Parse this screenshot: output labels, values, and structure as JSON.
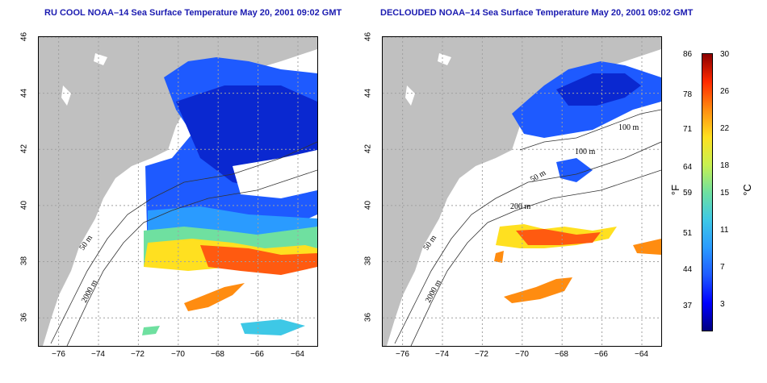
{
  "panels": [
    {
      "title": "RU COOL NOAA–14 Sea Surface Temperature May 20, 2001 09:02 GMT"
    },
    {
      "title": "DECLOUDED NOAA–14 Sea Surface Temperature May 20, 2001 09:02 GMT"
    }
  ],
  "axes": {
    "x_ticks": [
      "−76",
      "−74",
      "−72",
      "−70",
      "−68",
      "−66",
      "−64"
    ],
    "y_ticks": [
      "46",
      "44",
      "42",
      "40",
      "38",
      "36"
    ],
    "x_range": [
      -77,
      -63
    ],
    "y_range": [
      35,
      46
    ]
  },
  "contours": {
    "left": [
      "50 m",
      "2000 m"
    ],
    "right": [
      "50 m",
      "2000 m",
      "200 m",
      "50 m",
      "100 m",
      "100 m"
    ]
  },
  "colorbar": {
    "fahrenheit_label": "°F",
    "celsius_label": "°C",
    "fahrenheit_ticks": [
      "86",
      "78",
      "71",
      "64",
      "59",
      "51",
      "44",
      "37"
    ],
    "celsius_ticks": [
      "30",
      "26",
      "22",
      "18",
      "15",
      "11",
      "7",
      "3"
    ],
    "colors": [
      "#000080",
      "#0000ff",
      "#2a9bff",
      "#3ec8e6",
      "#6fe0a0",
      "#ffe020",
      "#ff8c10",
      "#ff2a00",
      "#8b0000"
    ]
  },
  "colors": {
    "land": "#c0c0c0",
    "title": "#1a1ab0",
    "grid": "#a0a0a0"
  }
}
